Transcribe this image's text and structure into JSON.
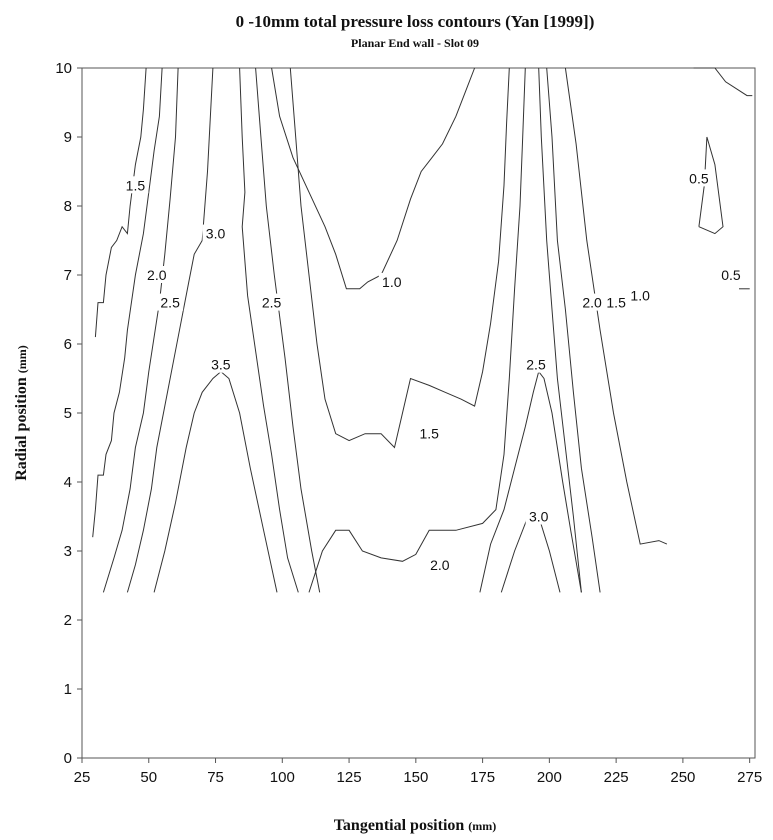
{
  "chart_data": {
    "type": "contour",
    "title": "0 -10mm  total pressure loss contours (Yan [1999])",
    "subtitle": "Planar End wall - Slot 09",
    "xlabel": "Tangential position",
    "xlabel_unit": "(mm)",
    "ylabel": "Radial position",
    "ylabel_unit": "(mm)",
    "xlim": [
      25,
      277
    ],
    "ylim": [
      0,
      10
    ],
    "x_ticks": [
      "25",
      "50",
      "75",
      "100",
      "125",
      "150",
      "175",
      "200",
      "225",
      "250",
      "275"
    ],
    "y_ticks": [
      "0",
      "1",
      "2",
      "3",
      "4",
      "5",
      "6",
      "7",
      "8",
      "9",
      "10"
    ],
    "grid": false,
    "contours": [
      {
        "level": "1.5",
        "points": [
          [
            30,
            6.1
          ],
          [
            31,
            6.6
          ],
          [
            33,
            6.6
          ],
          [
            34,
            7.0
          ],
          [
            36,
            7.4
          ],
          [
            38,
            7.5
          ],
          [
            40,
            7.7
          ],
          [
            42,
            7.6
          ],
          [
            43,
            8.0
          ],
          [
            45,
            8.6
          ],
          [
            47,
            9.0
          ],
          [
            48,
            9.4
          ],
          [
            49,
            10.0
          ]
        ]
      },
      {
        "level": "2.0",
        "points": [
          [
            29,
            3.2
          ],
          [
            30,
            3.6
          ],
          [
            31,
            4.1
          ],
          [
            33,
            4.1
          ],
          [
            34,
            4.4
          ],
          [
            36,
            4.6
          ],
          [
            37,
            5.0
          ],
          [
            39,
            5.3
          ],
          [
            41,
            5.8
          ],
          [
            42,
            6.2
          ],
          [
            45,
            7.0
          ],
          [
            48,
            7.6
          ],
          [
            50,
            8.2
          ],
          [
            52,
            8.8
          ],
          [
            54,
            9.3
          ],
          [
            55,
            10.0
          ]
        ]
      },
      {
        "level": "2.5",
        "points": [
          [
            33,
            2.4
          ],
          [
            37,
            2.9
          ],
          [
            40,
            3.3
          ],
          [
            43,
            3.9
          ],
          [
            45,
            4.5
          ],
          [
            48,
            5.0
          ],
          [
            50,
            5.6
          ],
          [
            52,
            6.1
          ],
          [
            54,
            6.6
          ],
          [
            56,
            7.3
          ],
          [
            58,
            8.1
          ],
          [
            60,
            9.0
          ],
          [
            61,
            10.0
          ]
        ]
      },
      {
        "level": "3.0",
        "points": [
          [
            42,
            2.4
          ],
          [
            45,
            2.8
          ],
          [
            48,
            3.3
          ],
          [
            51,
            3.9
          ],
          [
            53,
            4.5
          ],
          [
            56,
            5.1
          ],
          [
            59,
            5.7
          ],
          [
            62,
            6.3
          ],
          [
            65,
            6.9
          ],
          [
            67,
            7.3
          ],
          [
            70,
            7.5
          ],
          [
            72,
            8.5
          ],
          [
            74,
            10.0
          ]
        ]
      },
      {
        "level": "3.5",
        "points": [
          [
            52,
            2.4
          ],
          [
            56,
            3.0
          ],
          [
            60,
            3.7
          ],
          [
            64,
            4.5
          ],
          [
            67,
            5.0
          ],
          [
            70,
            5.3
          ],
          [
            74,
            5.5
          ],
          [
            77,
            5.6
          ],
          [
            80,
            5.5
          ],
          [
            84,
            5.0
          ],
          [
            88,
            4.2
          ],
          [
            93,
            3.3
          ],
          [
            98,
            2.4
          ]
        ]
      },
      {
        "level": "3.0",
        "points": [
          [
            84,
            10.0
          ],
          [
            85,
            9.0
          ],
          [
            86,
            8.2
          ],
          [
            85,
            7.7
          ],
          [
            87,
            6.7
          ],
          [
            90,
            5.9
          ],
          [
            93,
            5.1
          ],
          [
            96,
            4.4
          ],
          [
            99,
            3.6
          ],
          [
            102,
            2.9
          ],
          [
            106,
            2.4
          ]
        ]
      },
      {
        "level": "2.5",
        "points": [
          [
            90,
            10.0
          ],
          [
            92,
            9.0
          ],
          [
            94,
            8.0
          ],
          [
            97,
            7.0
          ],
          [
            101,
            5.8
          ],
          [
            104,
            4.8
          ],
          [
            107,
            3.9
          ],
          [
            111,
            3.0
          ],
          [
            114,
            2.4
          ]
        ]
      },
      {
        "level": "1.0",
        "points": [
          [
            96,
            10.0
          ],
          [
            99,
            9.3
          ],
          [
            104,
            8.7
          ],
          [
            110,
            8.2
          ],
          [
            116,
            7.7
          ],
          [
            120,
            7.3
          ],
          [
            124,
            6.8
          ],
          [
            129,
            6.8
          ],
          [
            132,
            6.9
          ],
          [
            137,
            7.0
          ],
          [
            143,
            7.5
          ],
          [
            148,
            8.1
          ],
          [
            152,
            8.5
          ],
          [
            156,
            8.7
          ],
          [
            160,
            8.9
          ],
          [
            165,
            9.3
          ],
          [
            169,
            9.7
          ],
          [
            172,
            10.0
          ]
        ]
      },
      {
        "level": "1.5",
        "points": [
          [
            103,
            10.0
          ],
          [
            105,
            9.0
          ],
          [
            107,
            8.0
          ],
          [
            110,
            7.0
          ],
          [
            113,
            6.0
          ],
          [
            116,
            5.2
          ],
          [
            120,
            4.7
          ],
          [
            125,
            4.6
          ],
          [
            131,
            4.7
          ],
          [
            137,
            4.7
          ],
          [
            142,
            4.5
          ],
          [
            145,
            5.0
          ],
          [
            148,
            5.5
          ],
          [
            155,
            5.4
          ],
          [
            161,
            5.3
          ],
          [
            167,
            5.2
          ],
          [
            172,
            5.1
          ],
          [
            175,
            5.6
          ],
          [
            178,
            6.3
          ],
          [
            181,
            7.2
          ],
          [
            183,
            8.3
          ],
          [
            184,
            9.2
          ],
          [
            185,
            10.0
          ]
        ]
      },
      {
        "level": "2.0",
        "points": [
          [
            110,
            2.4
          ],
          [
            115,
            3.0
          ],
          [
            120,
            3.3
          ],
          [
            125,
            3.3
          ],
          [
            130,
            3.0
          ],
          [
            137,
            2.9
          ],
          [
            145,
            2.85
          ],
          [
            150,
            2.95
          ],
          [
            155,
            3.3
          ],
          [
            165,
            3.3
          ],
          [
            175,
            3.4
          ],
          [
            180,
            3.6
          ],
          [
            183,
            4.4
          ],
          [
            185,
            5.5
          ],
          [
            187,
            6.8
          ],
          [
            189,
            8.0
          ],
          [
            190,
            9.0
          ],
          [
            191,
            10.0
          ]
        ]
      },
      {
        "level": "2.5",
        "points": [
          [
            174,
            2.4
          ],
          [
            178,
            3.1
          ],
          [
            183,
            3.6
          ],
          [
            187,
            4.2
          ],
          [
            191,
            4.8
          ],
          [
            194,
            5.3
          ],
          [
            196,
            5.6
          ],
          [
            198,
            5.5
          ],
          [
            201,
            5.0
          ],
          [
            205,
            4.0
          ],
          [
            208,
            3.3
          ],
          [
            212,
            2.4
          ]
        ]
      },
      {
        "level": "3.0",
        "points": [
          [
            182,
            2.4
          ],
          [
            187,
            3.0
          ],
          [
            192,
            3.5
          ],
          [
            196,
            3.5
          ],
          [
            200,
            3.0
          ],
          [
            204,
            2.4
          ]
        ]
      },
      {
        "level": "2.0",
        "points": [
          [
            196,
            10.0
          ],
          [
            197,
            9.0
          ],
          [
            199,
            7.5
          ],
          [
            201,
            6.5
          ],
          [
            203,
            5.5
          ],
          [
            206,
            4.5
          ],
          [
            209,
            3.5
          ],
          [
            212,
            2.4
          ]
        ]
      },
      {
        "level": "1.5",
        "points": [
          [
            199,
            10.0
          ],
          [
            201,
            9.0
          ],
          [
            203,
            7.5
          ],
          [
            206,
            6.5
          ],
          [
            209,
            5.3
          ],
          [
            212,
            4.2
          ],
          [
            216,
            3.2
          ],
          [
            219,
            2.4
          ]
        ]
      },
      {
        "level": "1.0",
        "points": [
          [
            206,
            10.0
          ],
          [
            210,
            8.9
          ],
          [
            214,
            7.5
          ],
          [
            219,
            6.2
          ],
          [
            224,
            5.0
          ],
          [
            229,
            4.0
          ],
          [
            234,
            3.1
          ],
          [
            241,
            3.15
          ],
          [
            244,
            3.1
          ]
        ]
      },
      {
        "level": "0.5",
        "points": [
          [
            256,
            7.7
          ],
          [
            258,
            8.3
          ],
          [
            259,
            9.0
          ],
          [
            262,
            8.6
          ],
          [
            265,
            7.7
          ],
          [
            262,
            7.6
          ],
          [
            256,
            7.7
          ]
        ]
      },
      {
        "level": "0.5",
        "points": [
          [
            254,
            10.0
          ],
          [
            262,
            10.0
          ],
          [
            266,
            9.8
          ],
          [
            274,
            9.6
          ],
          [
            276,
            9.6
          ]
        ]
      },
      {
        "level": "0.5",
        "points": [
          [
            271,
            6.8
          ],
          [
            275,
            6.8
          ]
        ]
      }
    ],
    "contour_labels": [
      {
        "text": "1.5",
        "x": 45,
        "y": 8.3
      },
      {
        "text": "2.0",
        "x": 53,
        "y": 7.0
      },
      {
        "text": "2.5",
        "x": 58,
        "y": 6.6
      },
      {
        "text": "3.0",
        "x": 75,
        "y": 7.6
      },
      {
        "text": "3.5",
        "x": 77,
        "y": 5.7
      },
      {
        "text": "2.5",
        "x": 96,
        "y": 6.6
      },
      {
        "text": "1.0",
        "x": 141,
        "y": 6.9
      },
      {
        "text": "1.5",
        "x": 155,
        "y": 4.7
      },
      {
        "text": "2.0",
        "x": 159,
        "y": 2.8
      },
      {
        "text": "2.5",
        "x": 195,
        "y": 5.7
      },
      {
        "text": "3.0",
        "x": 196,
        "y": 3.5
      },
      {
        "text": "2.0",
        "x": 216,
        "y": 6.6
      },
      {
        "text": "1.5",
        "x": 225,
        "y": 6.6
      },
      {
        "text": "1.0",
        "x": 234,
        "y": 6.7
      },
      {
        "text": "0.5",
        "x": 256,
        "y": 8.4
      },
      {
        "text": "0.5",
        "x": 268,
        "y": 7.0
      }
    ]
  }
}
